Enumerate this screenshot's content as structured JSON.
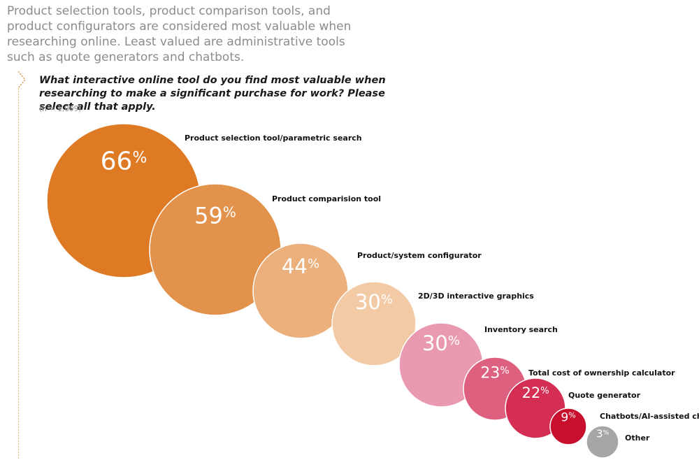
{
  "header": {
    "headline": "Product selection tools, product comparison tools, and product configurators are considered most valuable when researching online. Least valued are administrative tools such as quote generators and chatbots.",
    "question": "What interactive online tool do you find most valuable when researching to make a significant purchase for work? Please select all that apply.",
    "sample": "(n = 1,009)"
  },
  "chart_data": {
    "type": "bubble",
    "title": "What interactive online tool do you find most valuable when researching to make a significant purchase for work? Please select all that apply.",
    "subtitle": "(n = 1,009)",
    "unit": "%",
    "categories": [
      "Product selection tool/parametric search",
      "Product comparision tool",
      "Product/system configurator",
      "2D/3D interactive  graphics",
      "Inventory search",
      "Total cost of ownership calculator",
      "Quote generator",
      "Chatbots/AI-assisted chat",
      "Other"
    ],
    "values": [
      66,
      59,
      44,
      30,
      30,
      23,
      22,
      9,
      3
    ],
    "value_labels": [
      "66",
      "59",
      "44",
      "30",
      "30",
      "23",
      "22",
      "9",
      "3"
    ],
    "colors": [
      "#DF7A24",
      "#E3924B",
      "#EBB07C",
      "#F2CBA6",
      "#E99AB0",
      "#DE607F",
      "#D42E55",
      "#C8102E",
      "#A6A6A6"
    ],
    "accent_color": "#E3924B"
  }
}
